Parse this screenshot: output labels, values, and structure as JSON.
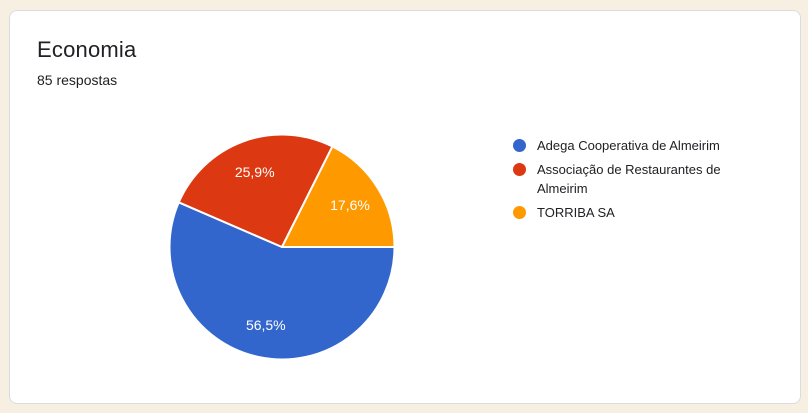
{
  "page": {
    "background_color": "#f7efe1"
  },
  "card": {
    "title": "Economia",
    "response_count": "85 respostas",
    "background_color": "#ffffff",
    "border_color": "#dadce0"
  },
  "chart_data": {
    "type": "pie",
    "title": "Economia",
    "subtitle": "85 respostas",
    "start_angle": "east",
    "direction": "clockwise",
    "legend_position": "right",
    "percent_label_color": "#ffffff",
    "slices": [
      {
        "label": "Adega Cooperativa de Almeirim",
        "percent": 56.5,
        "percent_label": "56,5%",
        "color": "#3366cc"
      },
      {
        "label": "Associação de Restaurantes de Almeirim",
        "percent": 25.9,
        "percent_label": "25,9%",
        "color": "#dc3912"
      },
      {
        "label": "TORRIBA SA",
        "percent": 17.6,
        "percent_label": "17,6%",
        "color": "#ff9900"
      }
    ]
  }
}
